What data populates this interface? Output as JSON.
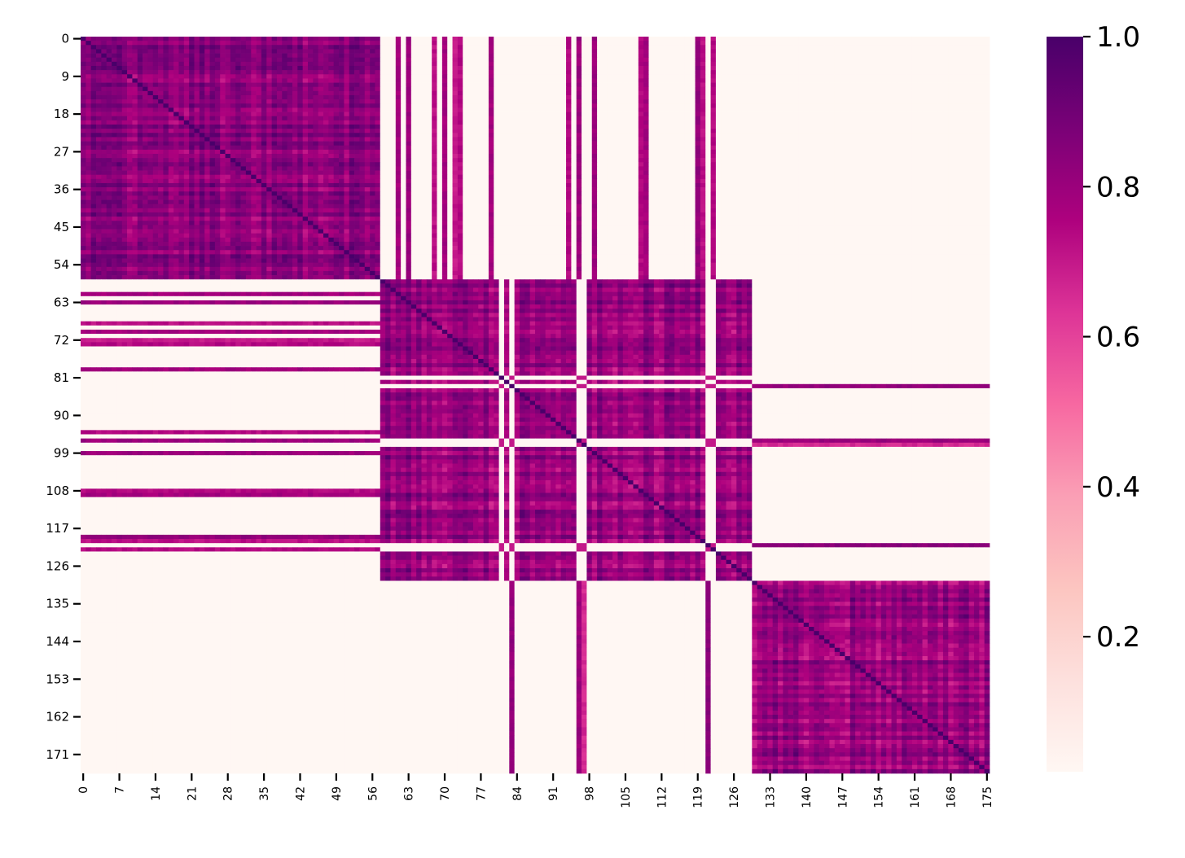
{
  "chart_data": {
    "type": "heatmap",
    "title": "",
    "xlabel": "",
    "ylabel": "",
    "n_rows": 176,
    "n_cols": 176,
    "colormap": "RdPu",
    "colormap_stops": [
      "#fff7f3",
      "#fde0dd",
      "#fcc5c0",
      "#fa9fb5",
      "#f768a1",
      "#dd3497",
      "#ae017e",
      "#7a0177",
      "#49006a"
    ],
    "value_range": [
      0.02,
      1.0
    ],
    "blocks": [
      {
        "name": "A",
        "start": 0,
        "end": 57,
        "within_value": 0.84
      },
      {
        "name": "B",
        "start": 58,
        "end": 129,
        "within_value": 0.82
      },
      {
        "name": "C",
        "start": 130,
        "end": 175,
        "within_value": 0.8
      }
    ],
    "diagonal_value": 1.0,
    "background_value": 0.02,
    "cross_block_members": [
      {
        "index": 61,
        "links": [
          "A"
        ],
        "value": 0.78
      },
      {
        "index": 63,
        "links": [
          "A"
        ],
        "value": 0.8
      },
      {
        "index": 68,
        "links": [
          "A"
        ],
        "value": 0.72
      },
      {
        "index": 70,
        "links": [
          "A"
        ],
        "value": 0.78
      },
      {
        "index": 72,
        "links": [
          "A"
        ],
        "value": 0.7
      },
      {
        "index": 73,
        "links": [
          "A"
        ],
        "value": 0.74
      },
      {
        "index": 79,
        "links": [
          "A"
        ],
        "value": 0.78
      },
      {
        "index": 83,
        "links": [
          "C"
        ],
        "value": 0.82
      },
      {
        "index": 94,
        "links": [
          "A"
        ],
        "value": 0.74
      },
      {
        "index": 96,
        "links": [
          "A",
          "C"
        ],
        "value": 0.8
      },
      {
        "index": 97,
        "links": [
          "C"
        ],
        "value": 0.66
      },
      {
        "index": 99,
        "links": [
          "A"
        ],
        "value": 0.8
      },
      {
        "index": 108,
        "links": [
          "A"
        ],
        "value": 0.74
      },
      {
        "index": 109,
        "links": [
          "A"
        ],
        "value": 0.78
      },
      {
        "index": 119,
        "links": [
          "A"
        ],
        "value": 0.82
      },
      {
        "index": 120,
        "links": [
          "A"
        ],
        "value": 0.72
      },
      {
        "index": 121,
        "links": [
          "C"
        ],
        "value": 0.84
      },
      {
        "index": 122,
        "links": [
          "A"
        ],
        "value": 0.74
      }
    ],
    "weak_in_block": [
      81,
      83,
      96,
      97,
      121,
      122
    ],
    "x_tick_labels": [
      "0",
      "7",
      "14",
      "21",
      "28",
      "35",
      "42",
      "49",
      "56",
      "63",
      "70",
      "77",
      "84",
      "91",
      "98",
      "105",
      "112",
      "119",
      "126",
      "133",
      "140",
      "147",
      "154",
      "161",
      "168",
      "175"
    ],
    "x_tick_step": 7,
    "y_tick_labels": [
      "0",
      "9",
      "18",
      "27",
      "36",
      "45",
      "54",
      "63",
      "72",
      "81",
      "90",
      "99",
      "108",
      "117",
      "126",
      "135",
      "144",
      "153",
      "162",
      "171"
    ],
    "y_tick_step": 9,
    "colorbar": {
      "ticks": [
        {
          "value": 0.2,
          "label": "0.2"
        },
        {
          "value": 0.4,
          "label": "0.4"
        },
        {
          "value": 0.6,
          "label": "0.6"
        },
        {
          "value": 0.8,
          "label": "0.8"
        },
        {
          "value": 1.0,
          "label": "1.0"
        }
      ],
      "range": [
        0.02,
        1.0
      ]
    }
  }
}
